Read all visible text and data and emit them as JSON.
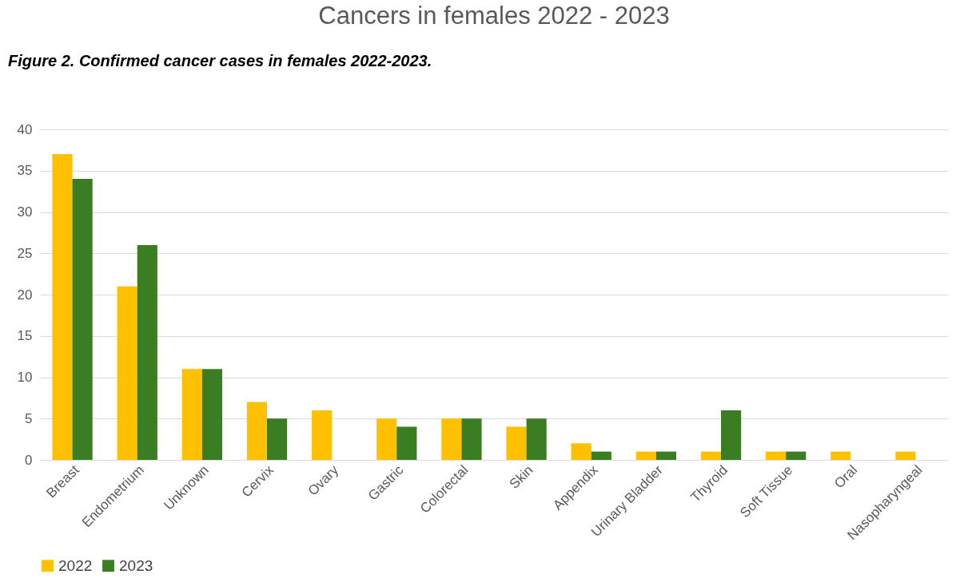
{
  "chart_data": {
    "type": "bar",
    "title": "Cancers in females 2022 - 2023",
    "annotations": [
      "Figure 2. Confirmed cancer cases in females 2022-2023."
    ],
    "categories": [
      "Breast",
      "Endometrium",
      "Unknown",
      "Cervix",
      "Ovary",
      "Gastric",
      "Colorectal",
      "Skin",
      "Appendix",
      "Urinary Bladder",
      "Thyroid",
      "Soft Tissue",
      "Oral",
      "Nasopharyngeal"
    ],
    "series": [
      {
        "name": "2022",
        "color": "#ffc000",
        "values": [
          37,
          21,
          11,
          7,
          6,
          5,
          5,
          4,
          2,
          1,
          1,
          1,
          1,
          1
        ]
      },
      {
        "name": "2023",
        "color": "#3b7d23",
        "values": [
          34,
          26,
          11,
          5,
          0,
          4,
          5,
          5,
          1,
          1,
          6,
          1,
          0,
          0
        ]
      }
    ],
    "ylim": [
      0,
      40
    ],
    "yticks": [
      0,
      5,
      10,
      15,
      20,
      25,
      30,
      35,
      40
    ],
    "grid": "y",
    "legend": "bottom"
  }
}
